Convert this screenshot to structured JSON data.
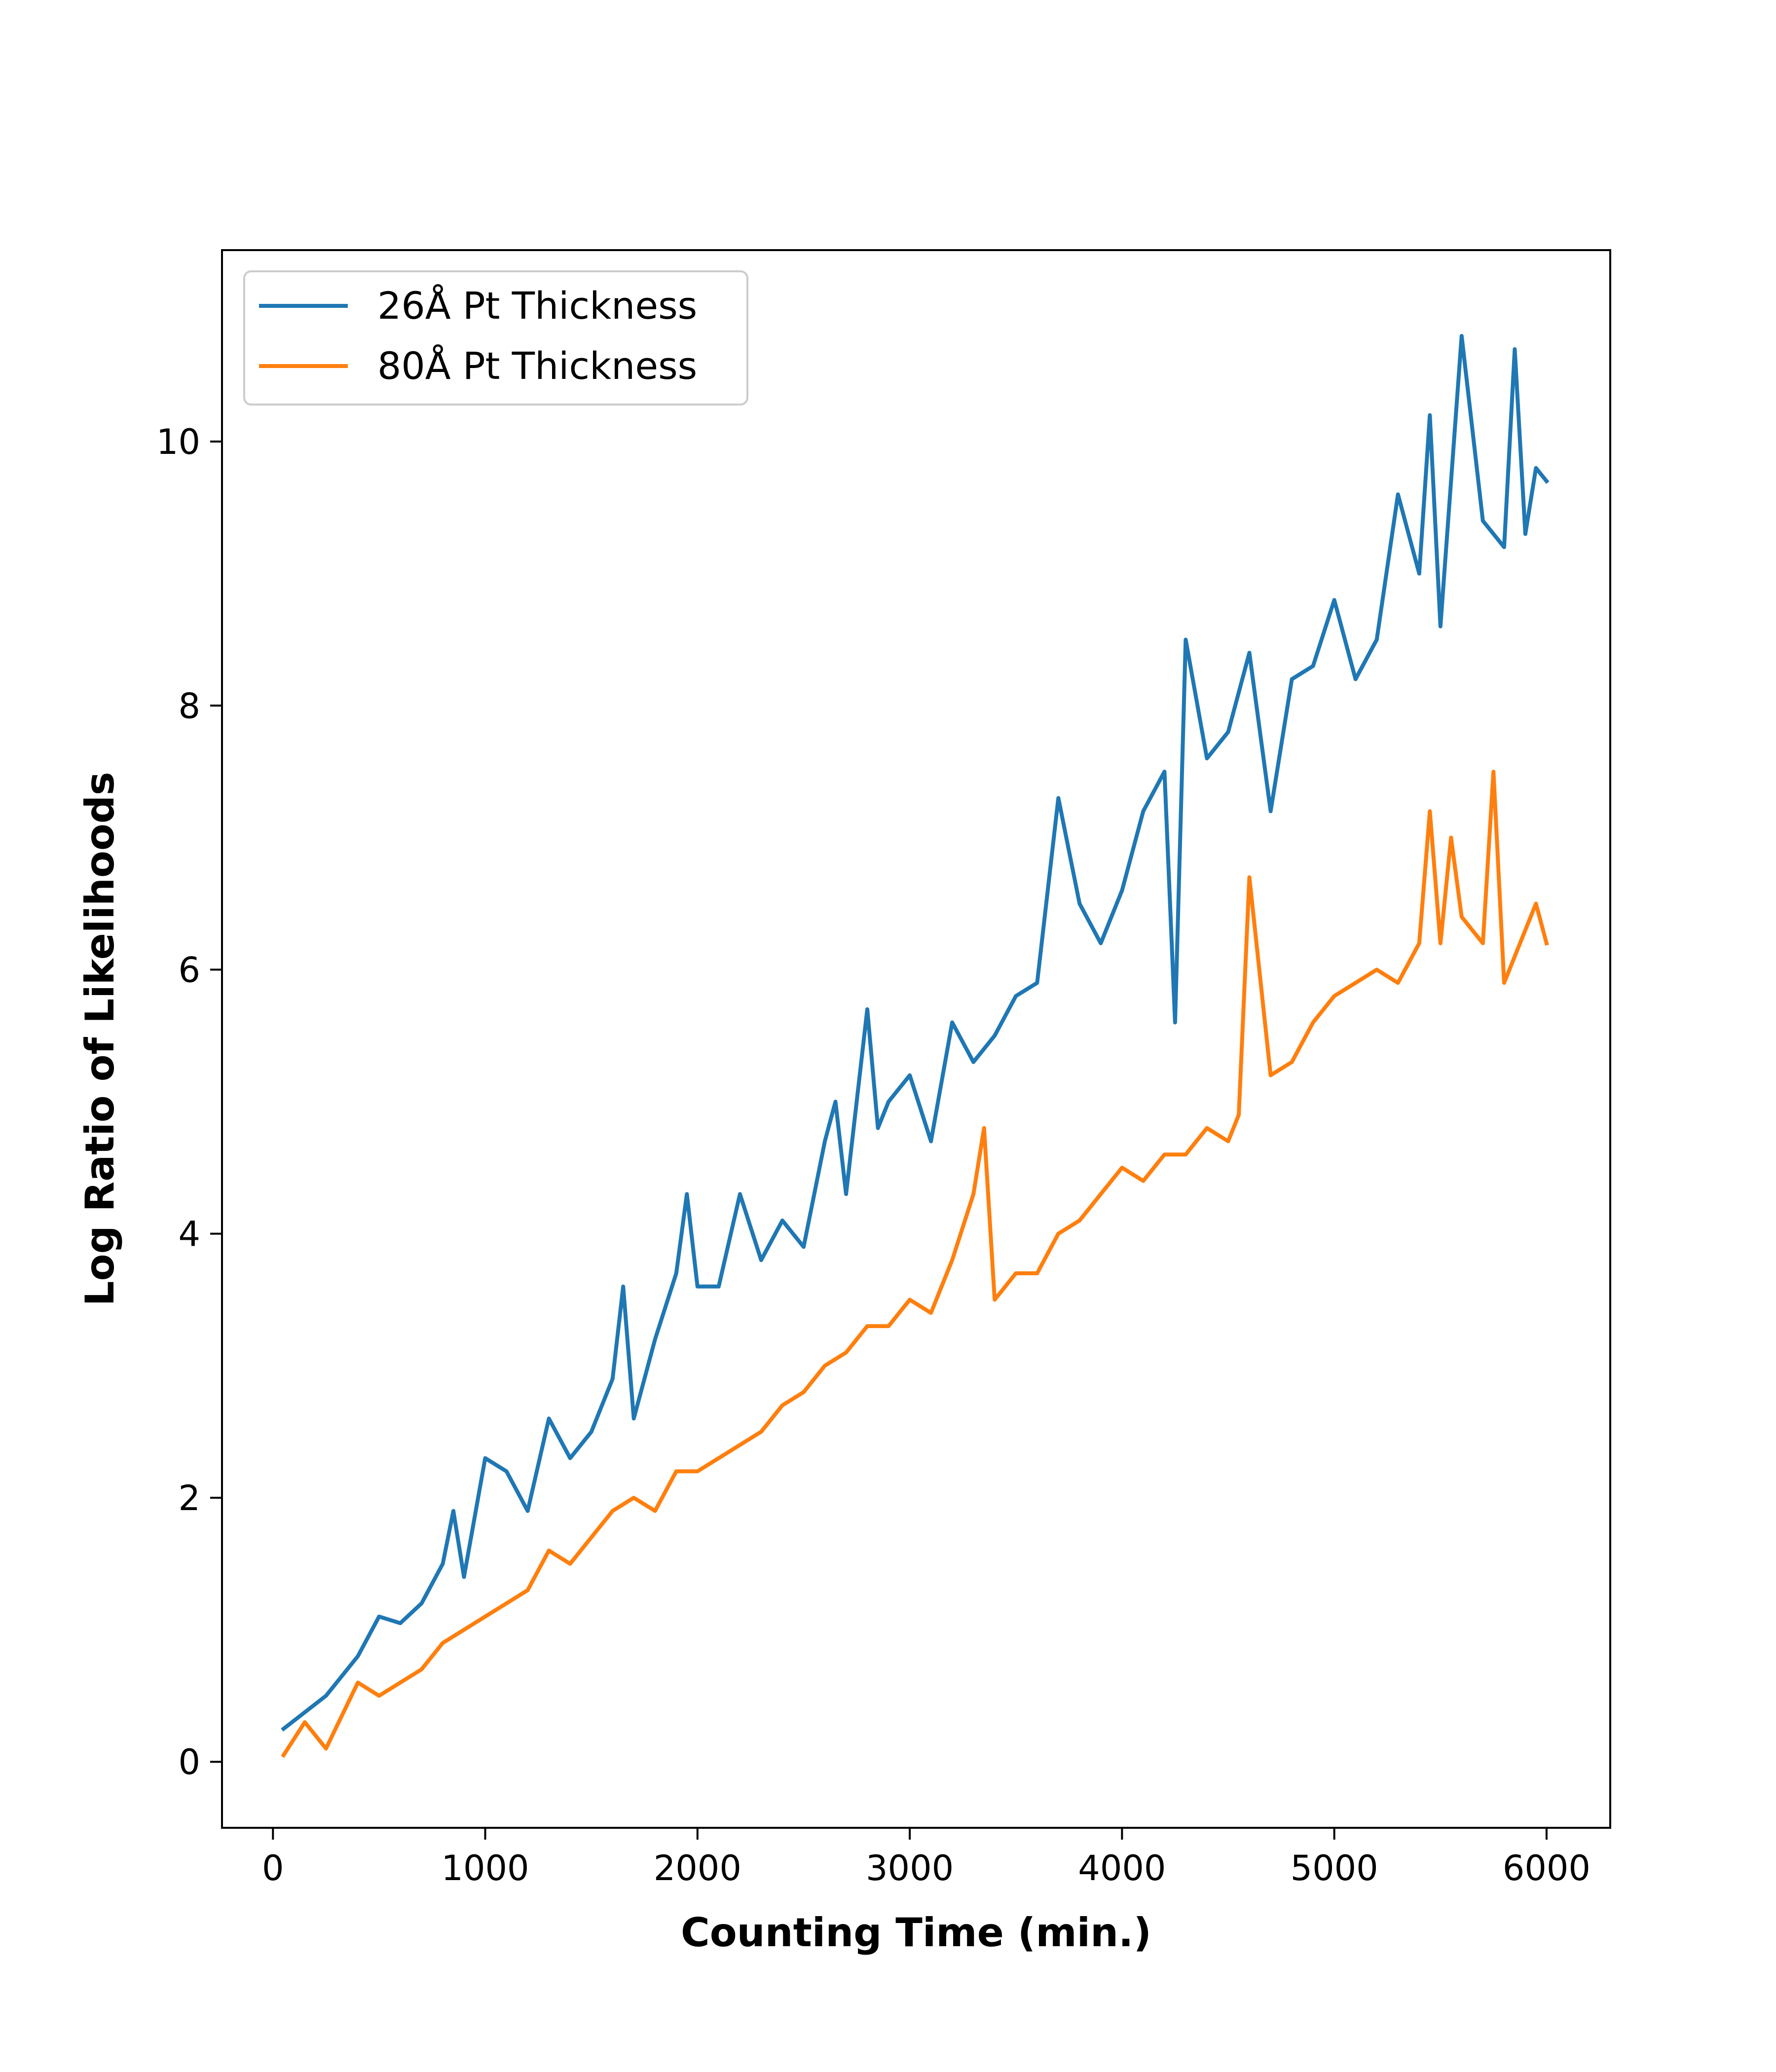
{
  "chart_data": {
    "type": "line",
    "title": "",
    "xlabel": "Counting Time (min.)",
    "ylabel": "Log Ratio of Likelihoods",
    "xlim": [
      -240,
      6300
    ],
    "ylim": [
      -0.5,
      11.45
    ],
    "xticks": [
      0,
      1000,
      2000,
      3000,
      4000,
      5000,
      6000
    ],
    "xtick_labels": [
      "0",
      "1000",
      "2000",
      "3000",
      "4000",
      "5000",
      "6000"
    ],
    "yticks": [
      0,
      2,
      4,
      6,
      8,
      10
    ],
    "ytick_labels": [
      "0",
      "2",
      "4",
      "6",
      "8",
      "10"
    ],
    "grid": false,
    "legend_position": "top-left",
    "series": [
      {
        "name": "26Å Pt Thickness",
        "color": "#1f77b4",
        "x": [
          50,
          250,
          400,
          500,
          600,
          700,
          800,
          850,
          900,
          1000,
          1100,
          1200,
          1300,
          1400,
          1500,
          1600,
          1650,
          1700,
          1800,
          1900,
          1950,
          2000,
          2100,
          2200,
          2300,
          2400,
          2500,
          2600,
          2650,
          2700,
          2800,
          2850,
          2900,
          3000,
          3100,
          3200,
          3300,
          3400,
          3500,
          3600,
          3700,
          3800,
          3900,
          4000,
          4100,
          4200,
          4250,
          4300,
          4400,
          4500,
          4600,
          4700,
          4800,
          4900,
          5000,
          5100,
          5200,
          5300,
          5400,
          5450,
          5500,
          5550,
          5600,
          5700,
          5800,
          5850,
          5900,
          5950,
          6000
        ],
        "y": [
          0.25,
          0.5,
          0.8,
          1.1,
          1.05,
          1.2,
          1.5,
          1.9,
          1.4,
          2.3,
          2.2,
          1.9,
          2.6,
          2.3,
          2.5,
          2.9,
          3.6,
          2.6,
          3.2,
          3.7,
          4.3,
          3.6,
          3.6,
          4.3,
          3.8,
          4.1,
          3.9,
          4.7,
          5.0,
          4.3,
          5.7,
          4.8,
          5.0,
          5.2,
          4.7,
          5.6,
          5.3,
          5.5,
          5.8,
          5.9,
          7.3,
          6.5,
          6.2,
          6.6,
          7.2,
          7.5,
          5.6,
          8.5,
          7.6,
          7.8,
          8.4,
          7.2,
          8.2,
          8.3,
          8.8,
          8.2,
          8.5,
          9.6,
          9.0,
          10.2,
          8.6,
          9.7,
          10.8,
          9.4,
          9.2,
          10.7,
          9.3,
          9.8,
          9.7
        ]
      },
      {
        "name": "80Å Pt Thickness",
        "color": "#ff7f0e",
        "x": [
          50,
          150,
          250,
          400,
          500,
          600,
          700,
          800,
          900,
          1000,
          1100,
          1200,
          1300,
          1400,
          1500,
          1600,
          1700,
          1800,
          1900,
          2000,
          2100,
          2200,
          2300,
          2400,
          2500,
          2600,
          2700,
          2800,
          2900,
          3000,
          3100,
          3200,
          3300,
          3350,
          3400,
          3500,
          3600,
          3700,
          3800,
          3900,
          4000,
          4100,
          4200,
          4300,
          4400,
          4500,
          4550,
          4600,
          4700,
          4800,
          4900,
          5000,
          5100,
          5200,
          5300,
          5400,
          5450,
          5500,
          5550,
          5600,
          5700,
          5750,
          5800,
          5900,
          5950,
          6000
        ],
        "y": [
          0.05,
          0.3,
          0.1,
          0.6,
          0.5,
          0.6,
          0.7,
          0.9,
          1.0,
          1.1,
          1.2,
          1.3,
          1.6,
          1.5,
          1.7,
          1.9,
          2.0,
          1.9,
          2.2,
          2.2,
          2.3,
          2.4,
          2.5,
          2.7,
          2.8,
          3.0,
          3.1,
          3.3,
          3.3,
          3.5,
          3.4,
          3.8,
          4.3,
          4.8,
          3.5,
          3.7,
          3.7,
          4.0,
          4.1,
          4.3,
          4.5,
          4.4,
          4.6,
          4.6,
          4.8,
          4.7,
          4.9,
          6.7,
          5.2,
          5.3,
          5.6,
          5.8,
          5.9,
          6.0,
          5.9,
          6.2,
          7.2,
          6.2,
          7.0,
          6.4,
          6.2,
          7.5,
          5.9,
          6.3,
          6.5,
          6.2
        ]
      }
    ]
  }
}
